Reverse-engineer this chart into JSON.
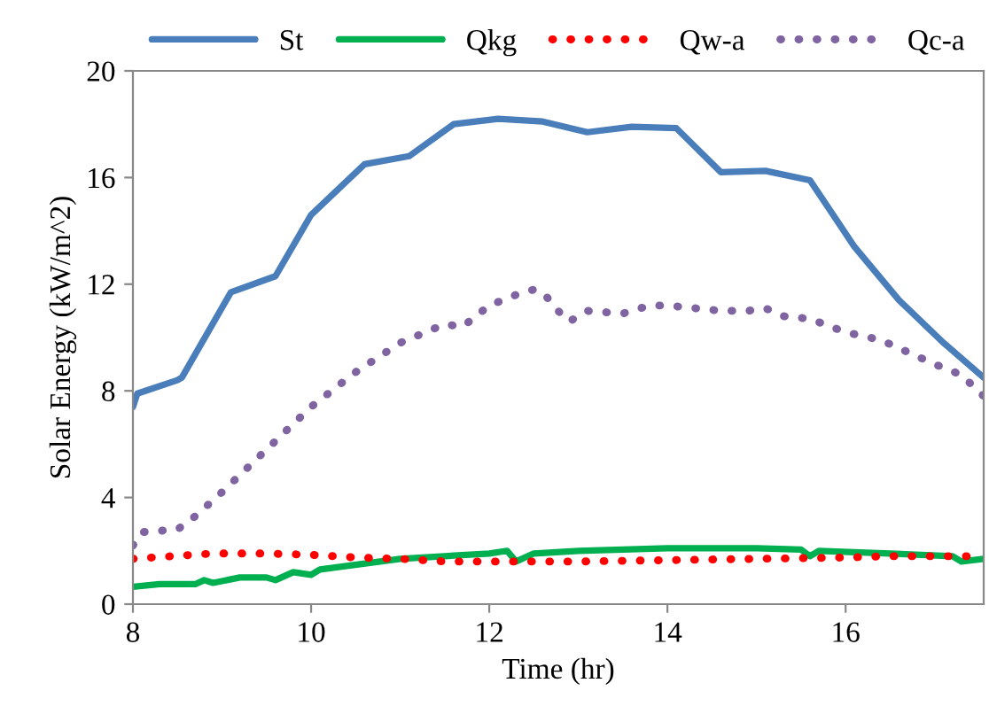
{
  "chart_data": {
    "type": "line",
    "xlabel": "Time (hr)",
    "ylabel": "Solar Energy (kW/m^2)",
    "xlim": [
      8,
      17.55
    ],
    "xticks": [
      8,
      10,
      12,
      14,
      16
    ],
    "ylim": [
      0,
      20
    ],
    "yticks": [
      0,
      4,
      8,
      12,
      16,
      20
    ],
    "grid": false,
    "legend": "top",
    "marker": "none",
    "series": [
      {
        "name": "St",
        "color": "#4a7ebb",
        "line_style": "solid",
        "x": [
          8.0,
          8.05,
          8.5,
          8.55,
          9.1,
          9.6,
          10.0,
          10.6,
          11.1,
          11.6,
          12.1,
          12.6,
          13.1,
          13.6,
          14.1,
          14.6,
          15.1,
          15.6,
          16.1,
          16.6,
          17.1,
          17.55
        ],
        "values": [
          7.4,
          7.9,
          8.4,
          8.5,
          11.7,
          12.3,
          14.6,
          16.5,
          16.8,
          18.0,
          18.2,
          18.1,
          17.7,
          17.9,
          17.85,
          16.2,
          16.25,
          15.9,
          13.4,
          11.4,
          9.8,
          8.5
        ]
      },
      {
        "name": "Qkg",
        "color": "#00b050",
        "line_style": "solid",
        "x": [
          8.0,
          8.3,
          8.7,
          8.8,
          8.9,
          9.2,
          9.5,
          9.6,
          9.8,
          10.0,
          10.1,
          11.0,
          12.0,
          12.2,
          12.3,
          12.5,
          13.0,
          14.0,
          15.0,
          15.5,
          15.6,
          15.7,
          16.5,
          17.2,
          17.3,
          17.55
        ],
        "values": [
          0.65,
          0.75,
          0.75,
          0.9,
          0.8,
          1.0,
          1.0,
          0.9,
          1.2,
          1.1,
          1.3,
          1.7,
          1.9,
          2.0,
          1.6,
          1.9,
          2.0,
          2.1,
          2.1,
          2.05,
          1.8,
          2.0,
          1.9,
          1.8,
          1.6,
          1.7
        ]
      },
      {
        "name": "Qw-a",
        "color": "#ff0000",
        "line_style": "dotted",
        "x": [
          8.0,
          8.9,
          9.5,
          10.0,
          10.5,
          11.0,
          11.5,
          12.0,
          13.0,
          14.0,
          15.0,
          16.0,
          16.5,
          17.55
        ],
        "values": [
          1.7,
          1.9,
          1.9,
          1.85,
          1.75,
          1.7,
          1.6,
          1.6,
          1.6,
          1.65,
          1.7,
          1.75,
          1.8,
          1.8
        ]
      },
      {
        "name": "Qc-a",
        "color": "#8064a2",
        "line_style": "dotted",
        "x": [
          8.0,
          8.1,
          8.5,
          8.7,
          9.0,
          9.5,
          10.0,
          10.5,
          11.0,
          11.5,
          11.7,
          12.0,
          12.3,
          12.5,
          12.6,
          12.8,
          12.9,
          13.1,
          13.5,
          13.8,
          14.0,
          14.3,
          14.6,
          14.9,
          15.1,
          15.3,
          15.6,
          16.0,
          16.4,
          16.8,
          17.0,
          17.3,
          17.55
        ],
        "values": [
          2.2,
          2.7,
          2.8,
          3.3,
          4.2,
          5.8,
          7.4,
          8.7,
          9.8,
          10.5,
          10.4,
          11.2,
          11.6,
          11.8,
          11.7,
          10.9,
          10.6,
          11.0,
          10.9,
          11.2,
          11.2,
          11.1,
          11.0,
          11.0,
          11.1,
          10.8,
          10.7,
          10.2,
          9.9,
          9.3,
          9.0,
          8.6,
          7.8
        ]
      }
    ]
  }
}
